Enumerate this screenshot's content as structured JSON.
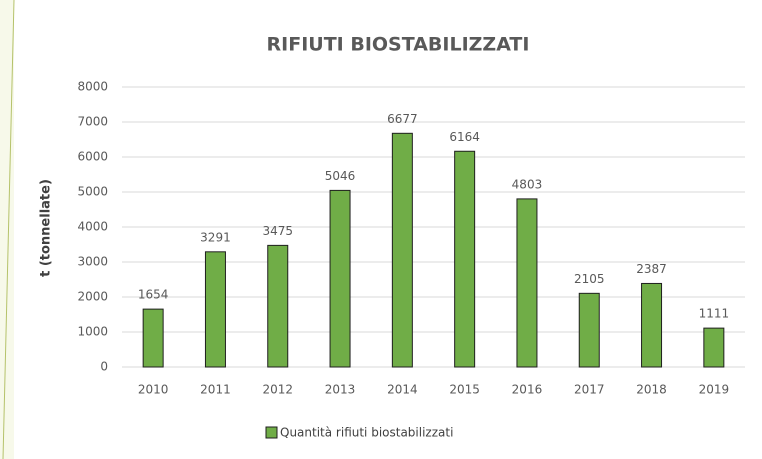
{
  "chart_data": {
    "type": "bar",
    "title": "RIFIUTI BIOSTABILIZZATI",
    "y_label": "t (tonnellate)",
    "categories": [
      "2010",
      "2011",
      "2012",
      "2013",
      "2014",
      "2015",
      "2016",
      "2017",
      "2018",
      "2019"
    ],
    "series": [
      {
        "name": "Quantità rifiuti biostabilizzati",
        "color": "#70ad47",
        "values": [
          1654,
          3291,
          3475,
          5046,
          6677,
          6164,
          4803,
          2105,
          2387,
          1111
        ]
      }
    ],
    "ylim": [
      0,
      8000
    ],
    "yticks": [
      0,
      1000,
      2000,
      3000,
      4000,
      5000,
      6000,
      7000,
      8000
    ],
    "grid": true,
    "data_labels": true,
    "legend": "bottom"
  }
}
